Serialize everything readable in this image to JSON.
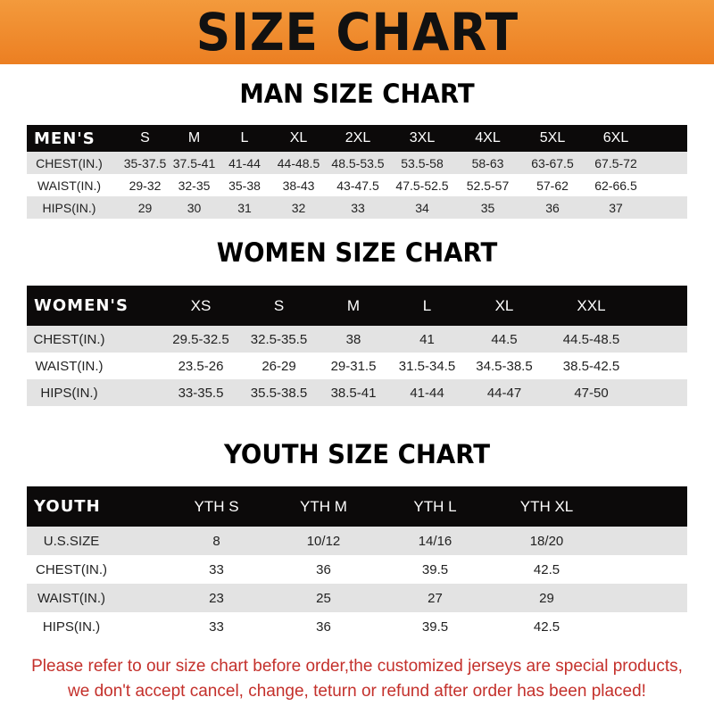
{
  "title": "SIZE CHART",
  "men": {
    "title": "MAN SIZE CHART",
    "header": [
      "MEN'S",
      "S",
      "M",
      "L",
      "XL",
      "2XL",
      "3XL",
      "4XL",
      "5XL",
      "6XL"
    ],
    "rows": [
      [
        "CHEST(IN.)",
        "35-37.5",
        "37.5-41",
        "41-44",
        "44-48.5",
        "48.5-53.5",
        "53.5-58",
        "58-63",
        "63-67.5",
        "67.5-72"
      ],
      [
        "WAIST(IN.)",
        "29-32",
        "32-35",
        "35-38",
        "38-43",
        "43-47.5",
        "47.5-52.5",
        "52.5-57",
        "57-62",
        "62-66.5"
      ],
      [
        "HIPS(IN.)",
        "29",
        "30",
        "31",
        "32",
        "33",
        "34",
        "35",
        "36",
        "37"
      ]
    ]
  },
  "women": {
    "title": "WOMEN SIZE CHART",
    "header": [
      "WOMEN'S",
      "XS",
      "S",
      "M",
      "L",
      "XL",
      "XXL"
    ],
    "rows": [
      [
        "CHEST(IN.)",
        "29.5-32.5",
        "32.5-35.5",
        "38",
        "41",
        "44.5",
        "44.5-48.5"
      ],
      [
        "WAIST(IN.)",
        "23.5-26",
        "26-29",
        "29-31.5",
        "31.5-34.5",
        "34.5-38.5",
        "38.5-42.5"
      ],
      [
        "HIPS(IN.)",
        "33-35.5",
        "35.5-38.5",
        "38.5-41",
        "41-44",
        "44-47",
        "47-50"
      ]
    ]
  },
  "youth": {
    "title": "YOUTH SIZE CHART",
    "header": [
      "YOUTH",
      "YTH S",
      "YTH M",
      "YTH L",
      "YTH XL"
    ],
    "rows": [
      [
        "U.S.SIZE",
        "8",
        "10/12",
        "14/16",
        "18/20"
      ],
      [
        "CHEST(IN.)",
        "33",
        "36",
        "39.5",
        "42.5"
      ],
      [
        "WAIST(IN.)",
        "23",
        "25",
        "27",
        "29"
      ],
      [
        "HIPS(IN.)",
        "33",
        "36",
        "39.5",
        "42.5"
      ]
    ]
  },
  "note": {
    "line1": "Please refer to our size chart before order,the customized jerseys are special products,",
    "line2": "we don't accept cancel, change, teturn or refund after order has been placed!"
  },
  "colors": {
    "banner": "#ef8a2c",
    "header_row": "#0c0a0a",
    "note": "#c4302b"
  }
}
